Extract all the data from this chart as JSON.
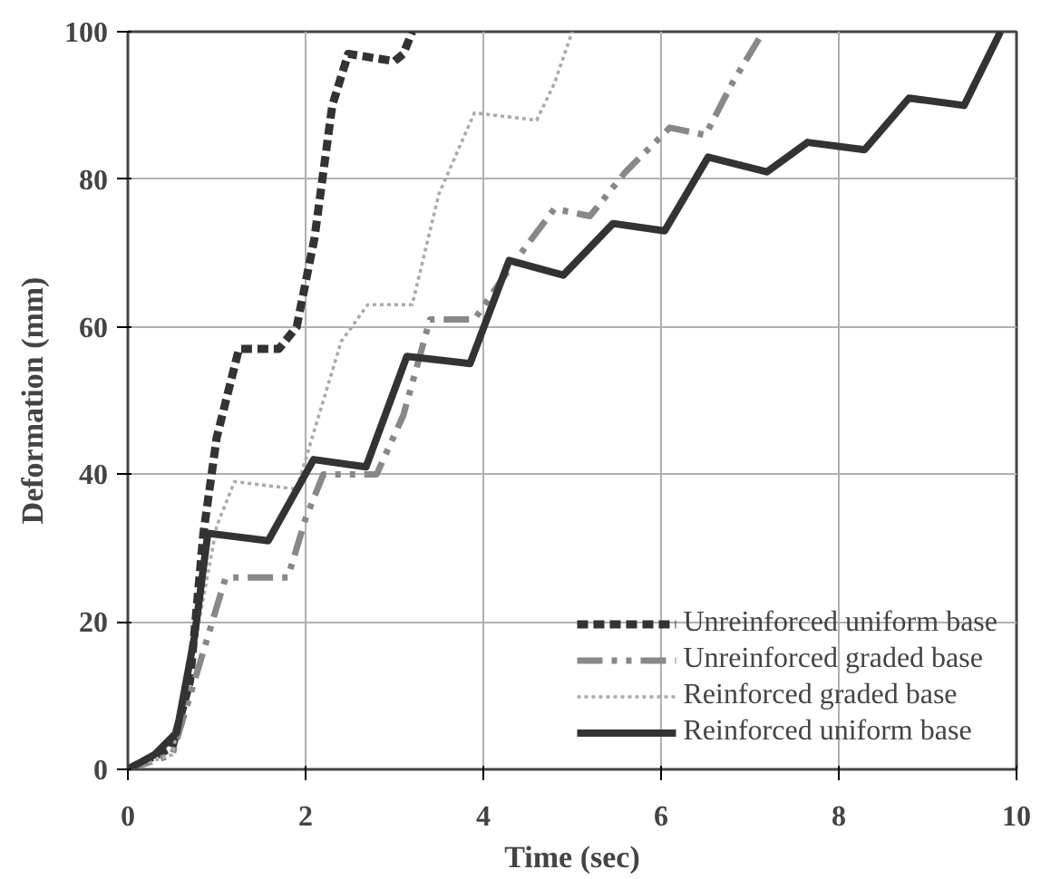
{
  "chart_data": {
    "type": "line",
    "xlabel": "Time (sec)",
    "ylabel": "Deformation (mm)",
    "xlim": [
      0,
      10
    ],
    "ylim": [
      0,
      100
    ],
    "xticks": [
      0,
      2,
      4,
      6,
      8,
      10
    ],
    "yticks": [
      0,
      20,
      40,
      60,
      80,
      100
    ],
    "grid": true,
    "legend": "bottom right",
    "series": [
      {
        "name": "Unreinforced uniform base",
        "color": "#333333",
        "line_style": "dashed",
        "x": [
          0,
          0.5,
          0.7,
          0.85,
          1.0,
          1.25,
          1.7,
          1.9,
          2.1,
          2.3,
          2.48,
          3.0,
          3.1,
          3.2
        ],
        "values": [
          0,
          3,
          12,
          32,
          45,
          57,
          57,
          60,
          72,
          90,
          97,
          96,
          97,
          100
        ]
      },
      {
        "name": "Unreinforced graded base",
        "color": "#888888",
        "line_style": "dashdot",
        "x": [
          0,
          0.5,
          0.8,
          1.1,
          1.8,
          2.0,
          2.2,
          2.8,
          3.1,
          3.4,
          3.9,
          4.3,
          4.8,
          5.2,
          5.6,
          6.1,
          6.5,
          6.8,
          7.15
        ],
        "values": [
          0,
          2,
          14,
          26,
          26,
          34,
          40,
          40,
          48,
          61,
          61,
          68,
          76,
          75,
          81,
          87,
          86,
          93,
          100
        ]
      },
      {
        "name": "Reinforced graded base",
        "color": "#aaaaaa",
        "line_style": "dotted",
        "x": [
          0,
          0.5,
          0.8,
          1.0,
          1.2,
          1.9,
          2.1,
          2.4,
          2.7,
          3.2,
          3.5,
          3.9,
          4.6,
          4.8,
          5.0
        ],
        "values": [
          0,
          2,
          20,
          33,
          39,
          38,
          46,
          58,
          63,
          63,
          78,
          89,
          88,
          93,
          100
        ]
      },
      {
        "name": "Reinforced uniform base",
        "color": "#333333",
        "line_style": "solid",
        "x": [
          0,
          0.3,
          0.55,
          0.75,
          0.9,
          1.58,
          2.09,
          2.68,
          3.14,
          3.85,
          4.29,
          4.9,
          5.46,
          6.04,
          6.53,
          7.19,
          7.65,
          8.29,
          8.79,
          9.41,
          9.82
        ],
        "values": [
          0,
          2,
          5,
          18,
          32,
          31,
          42,
          41,
          56,
          55,
          69,
          67,
          74,
          73,
          83,
          81,
          85,
          84,
          91,
          90,
          100
        ]
      }
    ]
  }
}
